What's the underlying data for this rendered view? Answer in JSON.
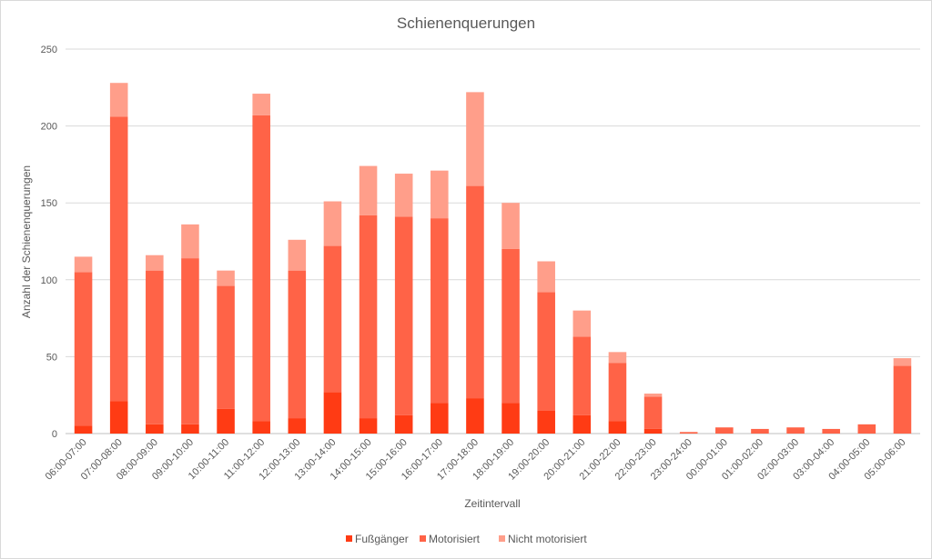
{
  "chart_data": {
    "type": "bar",
    "stacked": true,
    "title": "Schienenquerungen",
    "xlabel": "Zeitintervall",
    "ylabel": "Anzahl der Schienenquerungen",
    "ylim": [
      0,
      250
    ],
    "yticks": [
      0,
      50,
      100,
      150,
      200,
      250
    ],
    "grid": true,
    "legend": "bottom",
    "categories": [
      "06:00-07:00",
      "07:00-08:00",
      "08:00-09:00",
      "09:00-10:00",
      "10:00-11:00",
      "11:00-12:00",
      "12:00-13:00",
      "13:00-14:00",
      "14:00-15:00",
      "15:00-16:00",
      "16:00-17:00",
      "17:00-18:00",
      "18:00-19:00",
      "19:00-20:00",
      "20:00-21:00",
      "21:00-22:00",
      "22:00-23:00",
      "23:00-24:00",
      "00:00-01:00",
      "01:00-02:00",
      "02:00-03:00",
      "03:00-04:00",
      "04:00-05:00",
      "05:00-06:00"
    ],
    "series": [
      {
        "name": "Fußgänger",
        "color": "#ff3b14",
        "values": [
          5,
          21,
          6,
          6,
          16,
          8,
          10,
          27,
          10,
          12,
          20,
          23,
          20,
          15,
          12,
          8,
          3,
          0,
          0,
          0,
          0,
          0,
          0,
          0
        ]
      },
      {
        "name": "Motorisiert",
        "color": "#ff6347",
        "values": [
          100,
          185,
          100,
          108,
          80,
          199,
          96,
          95,
          132,
          129,
          120,
          138,
          100,
          77,
          51,
          38,
          21,
          1,
          4,
          3,
          4,
          3,
          6,
          44
        ]
      },
      {
        "name": "Nicht motorisiert",
        "color": "#ff9e8a",
        "values": [
          10,
          22,
          10,
          22,
          10,
          14,
          20,
          29,
          32,
          28,
          31,
          61,
          30,
          20,
          17,
          7,
          2,
          0,
          0,
          0,
          0,
          0,
          0,
          5
        ]
      }
    ]
  }
}
